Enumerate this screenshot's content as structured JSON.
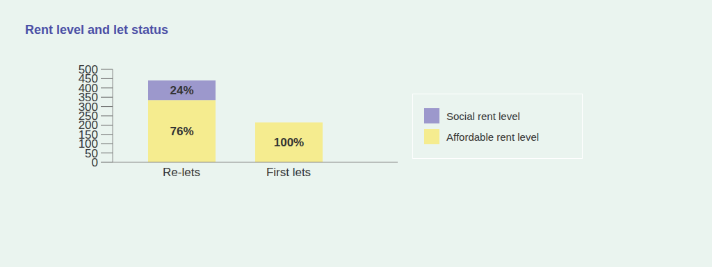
{
  "chart_data": {
    "type": "bar",
    "title": "Rent level and let status",
    "categories": [
      "Re-lets",
      "First lets"
    ],
    "series": [
      {
        "name": "Affordable rent level",
        "color": "#f5ec8f",
        "values": [
          335,
          215
        ],
        "labels": [
          "76%",
          "100%"
        ]
      },
      {
        "name": "Social rent level",
        "color": "#9c98cc",
        "values": [
          105,
          null
        ],
        "labels": [
          "24%",
          null
        ]
      }
    ],
    "ylim": [
      0,
      500
    ],
    "yticks": [
      0,
      50,
      100,
      150,
      200,
      250,
      300,
      350,
      400,
      450,
      500
    ],
    "stacked": true,
    "data_labels": true,
    "grid": false,
    "legend": "right"
  }
}
